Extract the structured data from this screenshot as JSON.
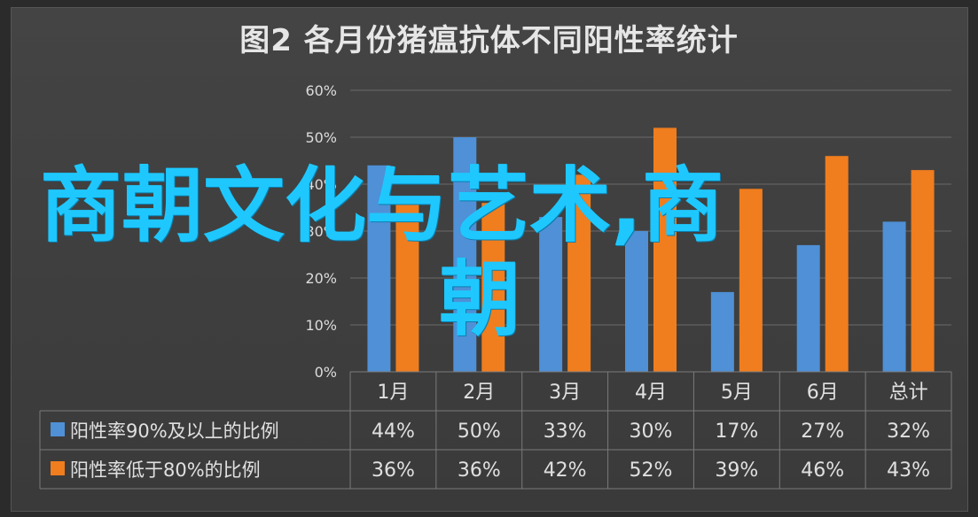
{
  "chart_data": {
    "type": "bar",
    "title": "图2 各月份猪瘟抗体不同阳性率统计",
    "categories": [
      "1月",
      "2月",
      "3月",
      "4月",
      "5月",
      "6月",
      "总计"
    ],
    "series": [
      {
        "name": "阳性率90%及以上的比例",
        "color": "#4f90d6",
        "values": [
          44,
          50,
          33,
          30,
          17,
          27,
          32
        ],
        "labels": [
          "44%",
          "50%",
          "33%",
          "30%",
          "17%",
          "27%",
          "32%"
        ]
      },
      {
        "name": "阳性率低于80%的比例",
        "color": "#f07d1e",
        "values": [
          36,
          36,
          42,
          52,
          39,
          46,
          43
        ],
        "labels": [
          "36%",
          "36%",
          "42%",
          "52%",
          "39%",
          "46%",
          "43%"
        ]
      }
    ],
    "y_ticks": [
      "0%",
      "10%",
      "20%",
      "30%",
      "40%",
      "50%",
      "60%"
    ],
    "ylim": [
      0,
      60
    ],
    "grid": true,
    "legend": "data-table"
  },
  "overlay_text": {
    "line1": "商朝文化与艺术,商",
    "line2": "朝"
  }
}
